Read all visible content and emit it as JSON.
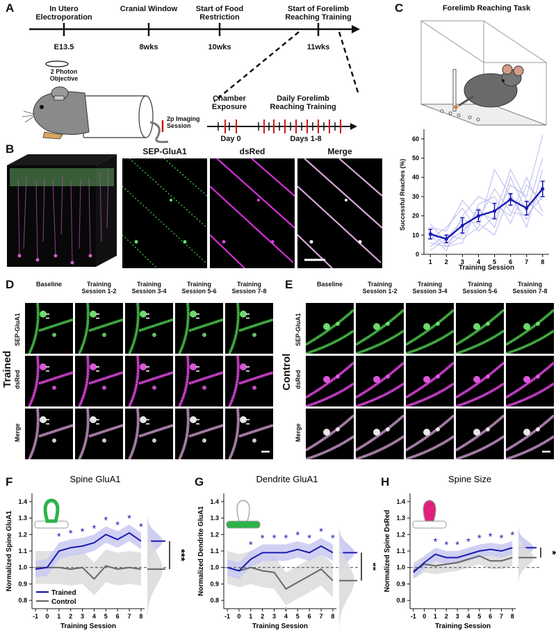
{
  "panel_a": {
    "label": "A",
    "timeline": [
      {
        "event": "In Utero Electroporation",
        "time": "E13.5"
      },
      {
        "event": "Cranial Window",
        "time": "8wks"
      },
      {
        "event": "Start of Food Restriction",
        "time": "10wks"
      },
      {
        "event": "Start of Forelimb Reaching Training",
        "time": "11wks"
      }
    ],
    "objective_label": "2 Photon Objective",
    "legend_label": "2p Imaging Session",
    "detail_labels": {
      "chamber": "Chamber Exposure",
      "training": "Daily Forelimb Reaching Training",
      "day0": "Day 0",
      "days": "Days 1-8"
    }
  },
  "panel_b": {
    "label": "B",
    "image_titles": [
      "SEP-GluA1",
      "dsRed",
      "Merge"
    ]
  },
  "panel_c": {
    "label": "C",
    "title": "Forelimb Reaching Task",
    "chart_data": {
      "type": "line",
      "xlabel": "Training Session",
      "ylabel": "Successful Reaches (%)",
      "x": [
        1,
        2,
        3,
        4,
        5,
        6,
        7,
        8
      ],
      "ylim": [
        0,
        65
      ],
      "yticks": [
        0,
        10,
        20,
        30,
        40,
        50,
        60
      ],
      "series": [
        {
          "name": "mean",
          "values": [
            10.5,
            8,
            15,
            20,
            22.5,
            28.5,
            24,
            34
          ],
          "err": [
            2.5,
            2,
            4,
            3,
            4,
            3,
            3.5,
            4
          ],
          "color": "#1a1ab0"
        }
      ],
      "individual_color": "#b8b8ef"
    }
  },
  "panel_d": {
    "label": "D",
    "group_label": "Trained",
    "columns": [
      "Baseline",
      "Training Session 1-2",
      "Training Session 3-4",
      "Training Session 5-6",
      "Training Session 7-8"
    ],
    "rows": [
      "SEP-GluA1",
      "dsRed",
      "Merge"
    ]
  },
  "panel_e": {
    "label": "E",
    "group_label": "Control",
    "columns": [
      "Baseline",
      "Training Session 1-2",
      "Training Session 3-4",
      "Training Session 5-6",
      "Training Session 7-8"
    ],
    "rows": [
      "SEP-GluA1",
      "dsRed",
      "Merge"
    ]
  },
  "chart_data": [
    {
      "id": "F",
      "type": "line",
      "title": "Spine GluA1",
      "xlabel": "Training Session",
      "ylabel": "Normalized Spine GluA1",
      "x": [
        -1,
        0,
        1,
        2,
        3,
        4,
        5,
        6,
        7,
        8
      ],
      "ylim": [
        0.75,
        1.45
      ],
      "yticks": [
        0.8,
        0.9,
        1.0,
        1.1,
        1.2,
        1.3,
        1.4
      ],
      "series": [
        {
          "name": "Trained",
          "values": [
            0.99,
            1.0,
            1.1,
            1.12,
            1.13,
            1.15,
            1.2,
            1.17,
            1.21,
            1.16
          ],
          "band": 0.05,
          "color": "#1a1ab0"
        },
        {
          "name": "Control",
          "values": [
            1.0,
            1.0,
            1.0,
            0.99,
            1.0,
            0.93,
            1.01,
            0.99,
            1.0,
            0.99
          ],
          "band": 0.1,
          "color": "#666666"
        }
      ],
      "star_sessions": [
        1,
        2,
        3,
        4,
        5,
        6,
        7,
        8
      ],
      "significance": "***",
      "legend": [
        "Trained",
        "Control"
      ]
    },
    {
      "id": "G",
      "type": "line",
      "title": "Dendrite GluA1",
      "xlabel": "Training Session",
      "ylabel": "Normalized Dendrite GluA1",
      "x": [
        -1,
        0,
        1,
        2,
        3,
        4,
        5,
        6,
        7,
        8
      ],
      "ylim": [
        0.75,
        1.45
      ],
      "yticks": [
        0.8,
        0.9,
        1.0,
        1.1,
        1.2,
        1.3,
        1.4
      ],
      "series": [
        {
          "name": "Trained",
          "values": [
            1.0,
            0.98,
            1.05,
            1.09,
            1.09,
            1.09,
            1.11,
            1.09,
            1.13,
            1.09
          ],
          "band": 0.05,
          "color": "#1a1ab0"
        },
        {
          "name": "Control",
          "values": [
            1.0,
            0.98,
            1.0,
            0.98,
            0.97,
            0.87,
            0.91,
            0.95,
            0.99,
            0.92
          ],
          "band": 0.1,
          "color": "#666666"
        }
      ],
      "star_sessions": [
        1,
        2,
        3,
        4,
        5,
        6,
        7,
        8
      ],
      "control_star_sessions": [
        4
      ],
      "significance": "**"
    },
    {
      "id": "H",
      "type": "line",
      "title": "Spine Size",
      "xlabel": "Training Session",
      "ylabel": "Normalized Spine DsRed",
      "x": [
        -1,
        0,
        1,
        2,
        3,
        4,
        5,
        6,
        7,
        8
      ],
      "ylim": [
        0.75,
        1.45
      ],
      "yticks": [
        0.8,
        0.9,
        1.0,
        1.1,
        1.2,
        1.3,
        1.4
      ],
      "series": [
        {
          "name": "Trained",
          "values": [
            0.97,
            1.03,
            1.08,
            1.06,
            1.06,
            1.08,
            1.1,
            1.11,
            1.1,
            1.12
          ],
          "band": 0.04,
          "color": "#1a1ab0"
        },
        {
          "name": "Control",
          "values": [
            0.98,
            1.02,
            1.01,
            1.02,
            1.03,
            1.05,
            1.07,
            1.04,
            1.04,
            1.06
          ],
          "band": 0.05,
          "color": "#666666"
        }
      ],
      "star_sessions": [
        1,
        2,
        3,
        4,
        5,
        6,
        7,
        8
      ],
      "significance": "*"
    }
  ]
}
